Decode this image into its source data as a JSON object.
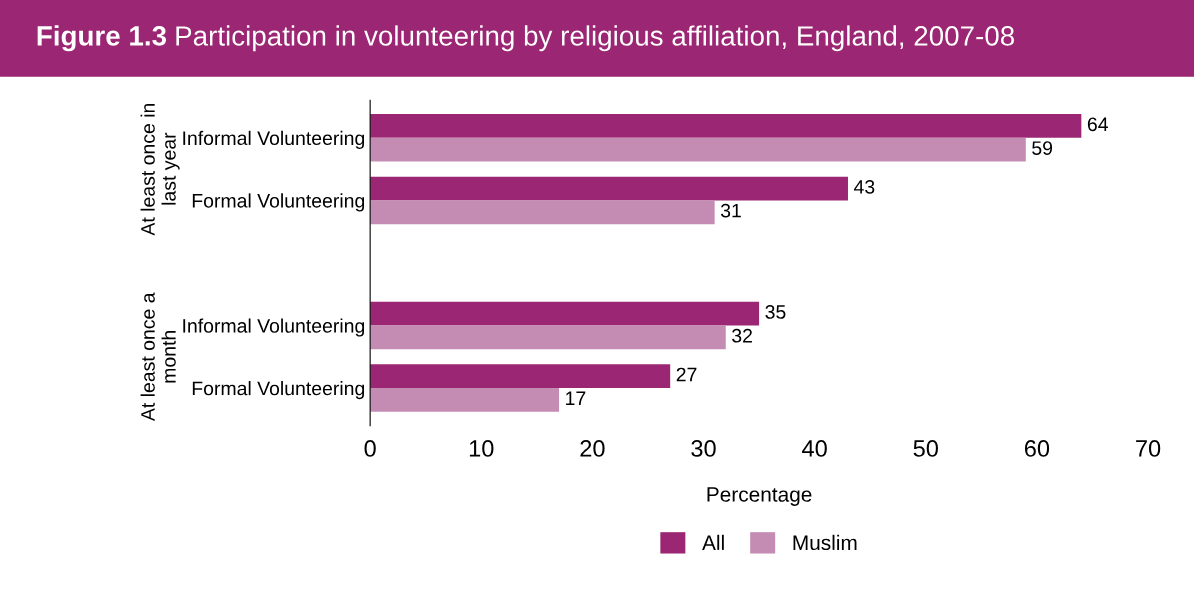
{
  "chart_data": {
    "type": "bar",
    "orientation": "horizontal",
    "title": "Figure 1.3 Participation in volunteering by religious affiliation, England, 2007-08",
    "categories": [
      "Informal Volunteering",
      "Formal Volunteering",
      "Informal Volunteering",
      "Formal Volunteering"
    ],
    "series": [
      {
        "name": "All",
        "color": "#9b2673",
        "values": [
          64,
          43,
          35,
          27
        ]
      },
      {
        "name": "Muslim",
        "color": "#c48bb3",
        "values": [
          59,
          31,
          32,
          17
        ]
      }
    ],
    "annotations": [
      "At least once in last year",
      "At least once a month"
    ],
    "xlabel": "Percentage",
    "xlim": [
      0,
      70
    ],
    "xticks": [
      0,
      10,
      20,
      30,
      40,
      50,
      60,
      70
    ],
    "data_labels": true,
    "grid": false,
    "legend": "bottom"
  }
}
